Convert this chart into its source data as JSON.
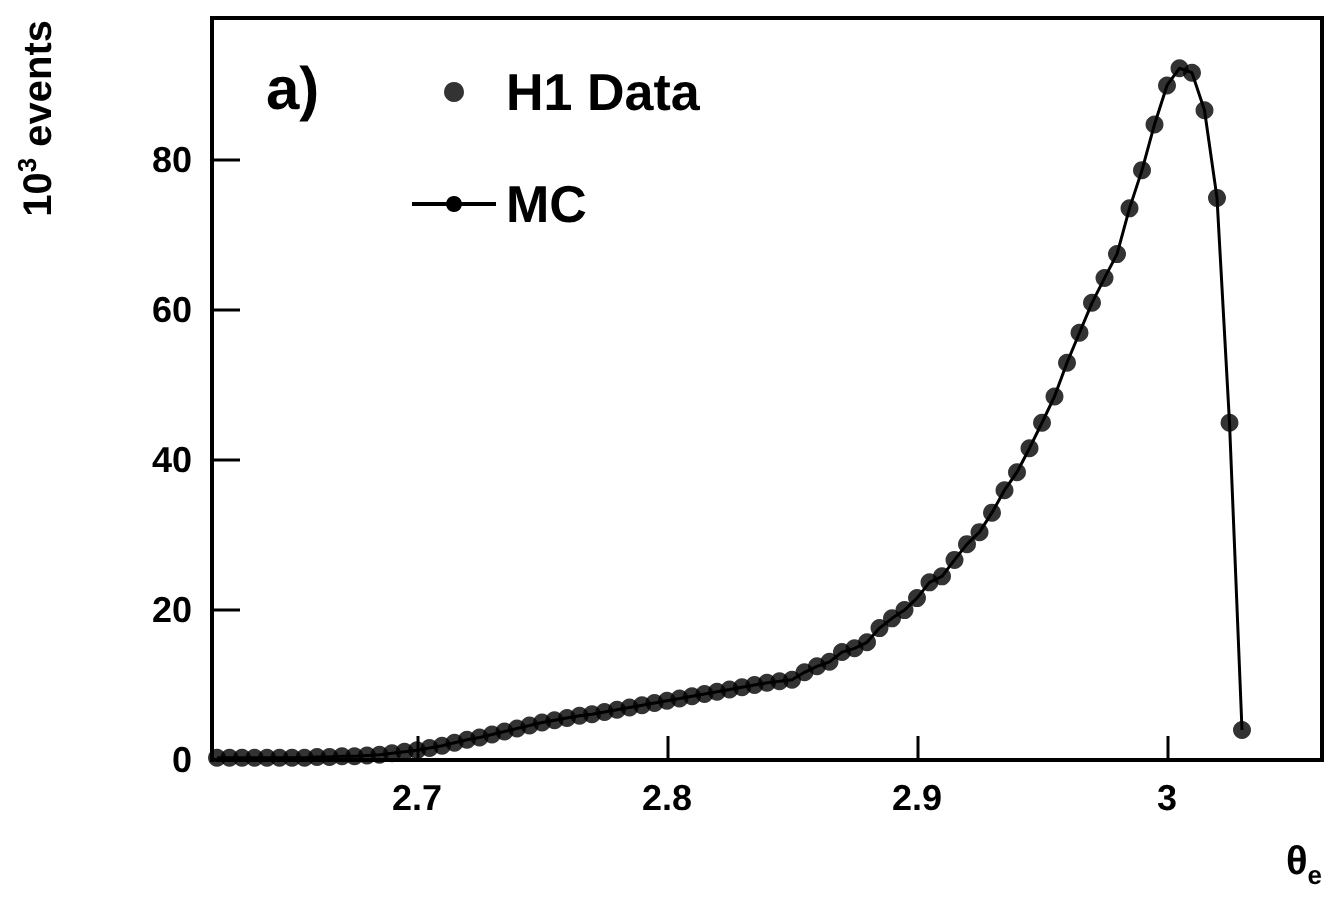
{
  "chart_data": {
    "type": "scatter",
    "xlabel": "θ$_{e}$",
    "ylabel": "10$^{3}$ events",
    "annotations": [
      "a)"
    ],
    "x": [
      2.62,
      2.625,
      2.63,
      2.635,
      2.64,
      2.645,
      2.65,
      2.655,
      2.66,
      2.665,
      2.67,
      2.675,
      2.68,
      2.685,
      2.69,
      2.695,
      2.7,
      2.705,
      2.71,
      2.715,
      2.72,
      2.725,
      2.73,
      2.735,
      2.74,
      2.745,
      2.75,
      2.755,
      2.76,
      2.765,
      2.77,
      2.775,
      2.78,
      2.785,
      2.79,
      2.795,
      2.8,
      2.805,
      2.81,
      2.815,
      2.82,
      2.825,
      2.83,
      2.835,
      2.84,
      2.845,
      2.85,
      2.855,
      2.86,
      2.865,
      2.87,
      2.875,
      2.88,
      2.885,
      2.89,
      2.895,
      2.9,
      2.905,
      2.91,
      2.915,
      2.92,
      2.925,
      2.93,
      2.935,
      2.94,
      2.945,
      2.95,
      2.955,
      2.96,
      2.965,
      2.97,
      2.975,
      2.98,
      2.985,
      2.99,
      2.995,
      3.0,
      3.005,
      3.01,
      3.015,
      3.02,
      3.025,
      3.03
    ],
    "series": [
      {
        "name": "H1 Data",
        "marker": "circle",
        "color": "#000000",
        "values": [
          0.3,
          0.3,
          0.3,
          0.3,
          0.3,
          0.3,
          0.3,
          0.3,
          0.4,
          0.4,
          0.5,
          0.5,
          0.6,
          0.7,
          0.9,
          1.1,
          1.3,
          1.6,
          1.9,
          2.3,
          2.7,
          3.0,
          3.4,
          3.8,
          4.2,
          4.6,
          5.0,
          5.3,
          5.6,
          5.9,
          6.1,
          6.4,
          6.7,
          7.0,
          7.3,
          7.6,
          7.9,
          8.2,
          8.5,
          8.8,
          9.1,
          9.4,
          9.7,
          10.0,
          10.3,
          10.5,
          10.7,
          11.7,
          12.5,
          13.1,
          14.4,
          14.9,
          15.7,
          17.6,
          18.9,
          20,
          21.6,
          23.7,
          24.5,
          26.7,
          28.8,
          30.4,
          33,
          36,
          38.4,
          41.6,
          45,
          48.5,
          53,
          57,
          61,
          64.3,
          67.5,
          73.6,
          78.7,
          84.8,
          90,
          92.3,
          91.7,
          86.7,
          75,
          45,
          4
        ]
      },
      {
        "name": "MC",
        "type": "line",
        "color": "#000000",
        "values": [
          0.3,
          0.3,
          0.3,
          0.3,
          0.3,
          0.3,
          0.3,
          0.3,
          0.4,
          0.4,
          0.5,
          0.5,
          0.6,
          0.7,
          0.9,
          1.1,
          1.3,
          1.6,
          1.9,
          2.3,
          2.7,
          3.0,
          3.4,
          3.8,
          4.2,
          4.6,
          5.0,
          5.3,
          5.6,
          5.9,
          6.1,
          6.4,
          6.7,
          7.0,
          7.3,
          7.6,
          7.9,
          8.2,
          8.5,
          8.8,
          9.1,
          9.4,
          9.7,
          10.0,
          10.3,
          10.5,
          10.7,
          11.7,
          12.5,
          13.1,
          14.4,
          14.9,
          15.7,
          17.6,
          18.9,
          20,
          21.6,
          23.7,
          24.5,
          26.7,
          28.8,
          30.4,
          33,
          36,
          38.4,
          41.6,
          45,
          48.5,
          53,
          57,
          61,
          64.3,
          67.5,
          73.6,
          78.7,
          84.8,
          90,
          92.3,
          91.7,
          86.7,
          75,
          45,
          4
        ]
      }
    ],
    "xlim": [
      2.618,
      3.062
    ],
    "xticks": [
      2.7,
      2.8,
      2.9,
      3
    ],
    "ylim": [
      0,
      99
    ],
    "yticks": [
      0,
      20,
      40,
      60,
      80
    ],
    "grid": false,
    "legend": "top left"
  }
}
